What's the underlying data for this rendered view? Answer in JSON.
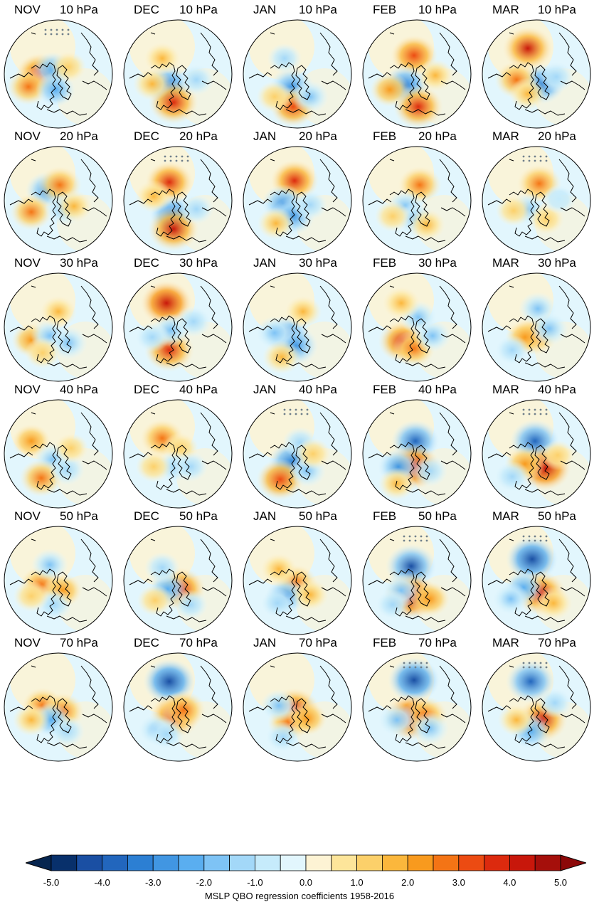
{
  "panels": [
    {
      "month": "NOV",
      "level": "10 hPa"
    },
    {
      "month": "DEC",
      "level": "10 hPa"
    },
    {
      "month": "JAN",
      "level": "10 hPa"
    },
    {
      "month": "FEB",
      "level": "10 hPa"
    },
    {
      "month": "MAR",
      "level": "10 hPa"
    },
    {
      "month": "NOV",
      "level": "20 hPa"
    },
    {
      "month": "DEC",
      "level": "20 hPa"
    },
    {
      "month": "JAN",
      "level": "20 hPa"
    },
    {
      "month": "FEB",
      "level": "20 hPa"
    },
    {
      "month": "MAR",
      "level": "20 hPa"
    },
    {
      "month": "NOV",
      "level": "30 hPa"
    },
    {
      "month": "DEC",
      "level": "30 hPa"
    },
    {
      "month": "JAN",
      "level": "30 hPa"
    },
    {
      "month": "FEB",
      "level": "30 hPa"
    },
    {
      "month": "MAR",
      "level": "30 hPa"
    },
    {
      "month": "NOV",
      "level": "40 hPa"
    },
    {
      "month": "DEC",
      "level": "40 hPa"
    },
    {
      "month": "JAN",
      "level": "40 hPa"
    },
    {
      "month": "FEB",
      "level": "40 hPa"
    },
    {
      "month": "MAR",
      "level": "40 hPa"
    },
    {
      "month": "NOV",
      "level": "50 hPa"
    },
    {
      "month": "DEC",
      "level": "50 hPa"
    },
    {
      "month": "JAN",
      "level": "50 hPa"
    },
    {
      "month": "FEB",
      "level": "50 hPa"
    },
    {
      "month": "MAR",
      "level": "50 hPa"
    },
    {
      "month": "NOV",
      "level": "70 hPa"
    },
    {
      "month": "DEC",
      "level": "70 hPa"
    },
    {
      "month": "JAN",
      "level": "70 hPa"
    },
    {
      "month": "FEB",
      "level": "70 hPa"
    },
    {
      "month": "MAR",
      "level": "70 hPa"
    }
  ],
  "colorbar": {
    "label": "MSLP  QBO regression coefficients  1958-2016",
    "ticks": [
      "-5.0",
      "-4.0",
      "-3.0",
      "-2.0",
      "-1.0",
      "0.0",
      "1.0",
      "2.0",
      "3.0",
      "4.0",
      "5.0"
    ],
    "range": [
      -5.0,
      5.0
    ],
    "step": 0.5,
    "colors": [
      "#08306b",
      "#1a4fa3",
      "#2266bd",
      "#2c7fd3",
      "#4196e2",
      "#5aaef0",
      "#7ec3f5",
      "#a3d8f8",
      "#c6ebfb",
      "#e2f6fd",
      "#fdf3d4",
      "#fde59a",
      "#fcd06a",
      "#fbb73c",
      "#f89a1e",
      "#f47415",
      "#ec4b12",
      "#dc2a0e",
      "#c8170b",
      "#a50f0b"
    ],
    "under_color": "#06254f",
    "over_color": "#8c0808"
  },
  "colors": {
    "coastline": "#000000",
    "stipple": "#6f7f8a",
    "neutral_pos": "#fdf3d4",
    "neutral_neg": "#e2f6fd"
  }
}
